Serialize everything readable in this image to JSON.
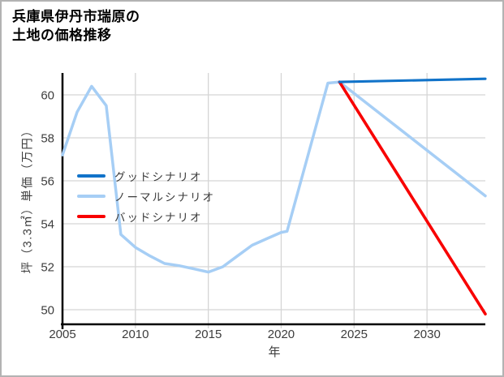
{
  "title": {
    "line1": "兵庫県伊丹市瑞原の",
    "line2": "土地の価格推移"
  },
  "chart_data": {
    "type": "line",
    "title": "兵庫県伊丹市瑞原の土地の価格推移",
    "xlabel": "年",
    "ylabel": "坪（3.3㎡）単価（万円）",
    "xlim": [
      2005,
      2034
    ],
    "ylim": [
      49.32,
      61.02
    ],
    "xticks": [
      2005,
      2010,
      2015,
      2020,
      2025,
      2030
    ],
    "yticks": [
      50,
      52,
      54,
      56,
      58,
      60
    ],
    "grid": true,
    "grid_color": "#d5d5d5",
    "axis_color": "#000000",
    "legend_position": "center-left",
    "draw_order": [
      1,
      2,
      0
    ],
    "series": [
      {
        "name": "グッドシナリオ",
        "color": "#1173c9",
        "x": [
          2024,
          2034
        ],
        "values": [
          60.6,
          60.75
        ]
      },
      {
        "name": "ノーマルシナリオ",
        "color": "#a6cef5",
        "x": [
          2005,
          2006,
          2007,
          2008,
          2009,
          2010,
          2011,
          2012,
          2013,
          2014,
          2015,
          2016,
          2017,
          2018,
          2019,
          2020,
          2020.4,
          2023.2,
          2024,
          2034
        ],
        "values": [
          57.2,
          59.2,
          60.4,
          59.5,
          53.5,
          52.9,
          52.5,
          52.15,
          52.05,
          51.9,
          51.75,
          52.0,
          52.5,
          53.0,
          53.3,
          53.6,
          53.65,
          60.55,
          60.6,
          55.3
        ]
      },
      {
        "name": "バッドシナリオ",
        "color": "#f80000",
        "x": [
          2024,
          2034
        ],
        "values": [
          60.6,
          49.8
        ]
      }
    ]
  }
}
